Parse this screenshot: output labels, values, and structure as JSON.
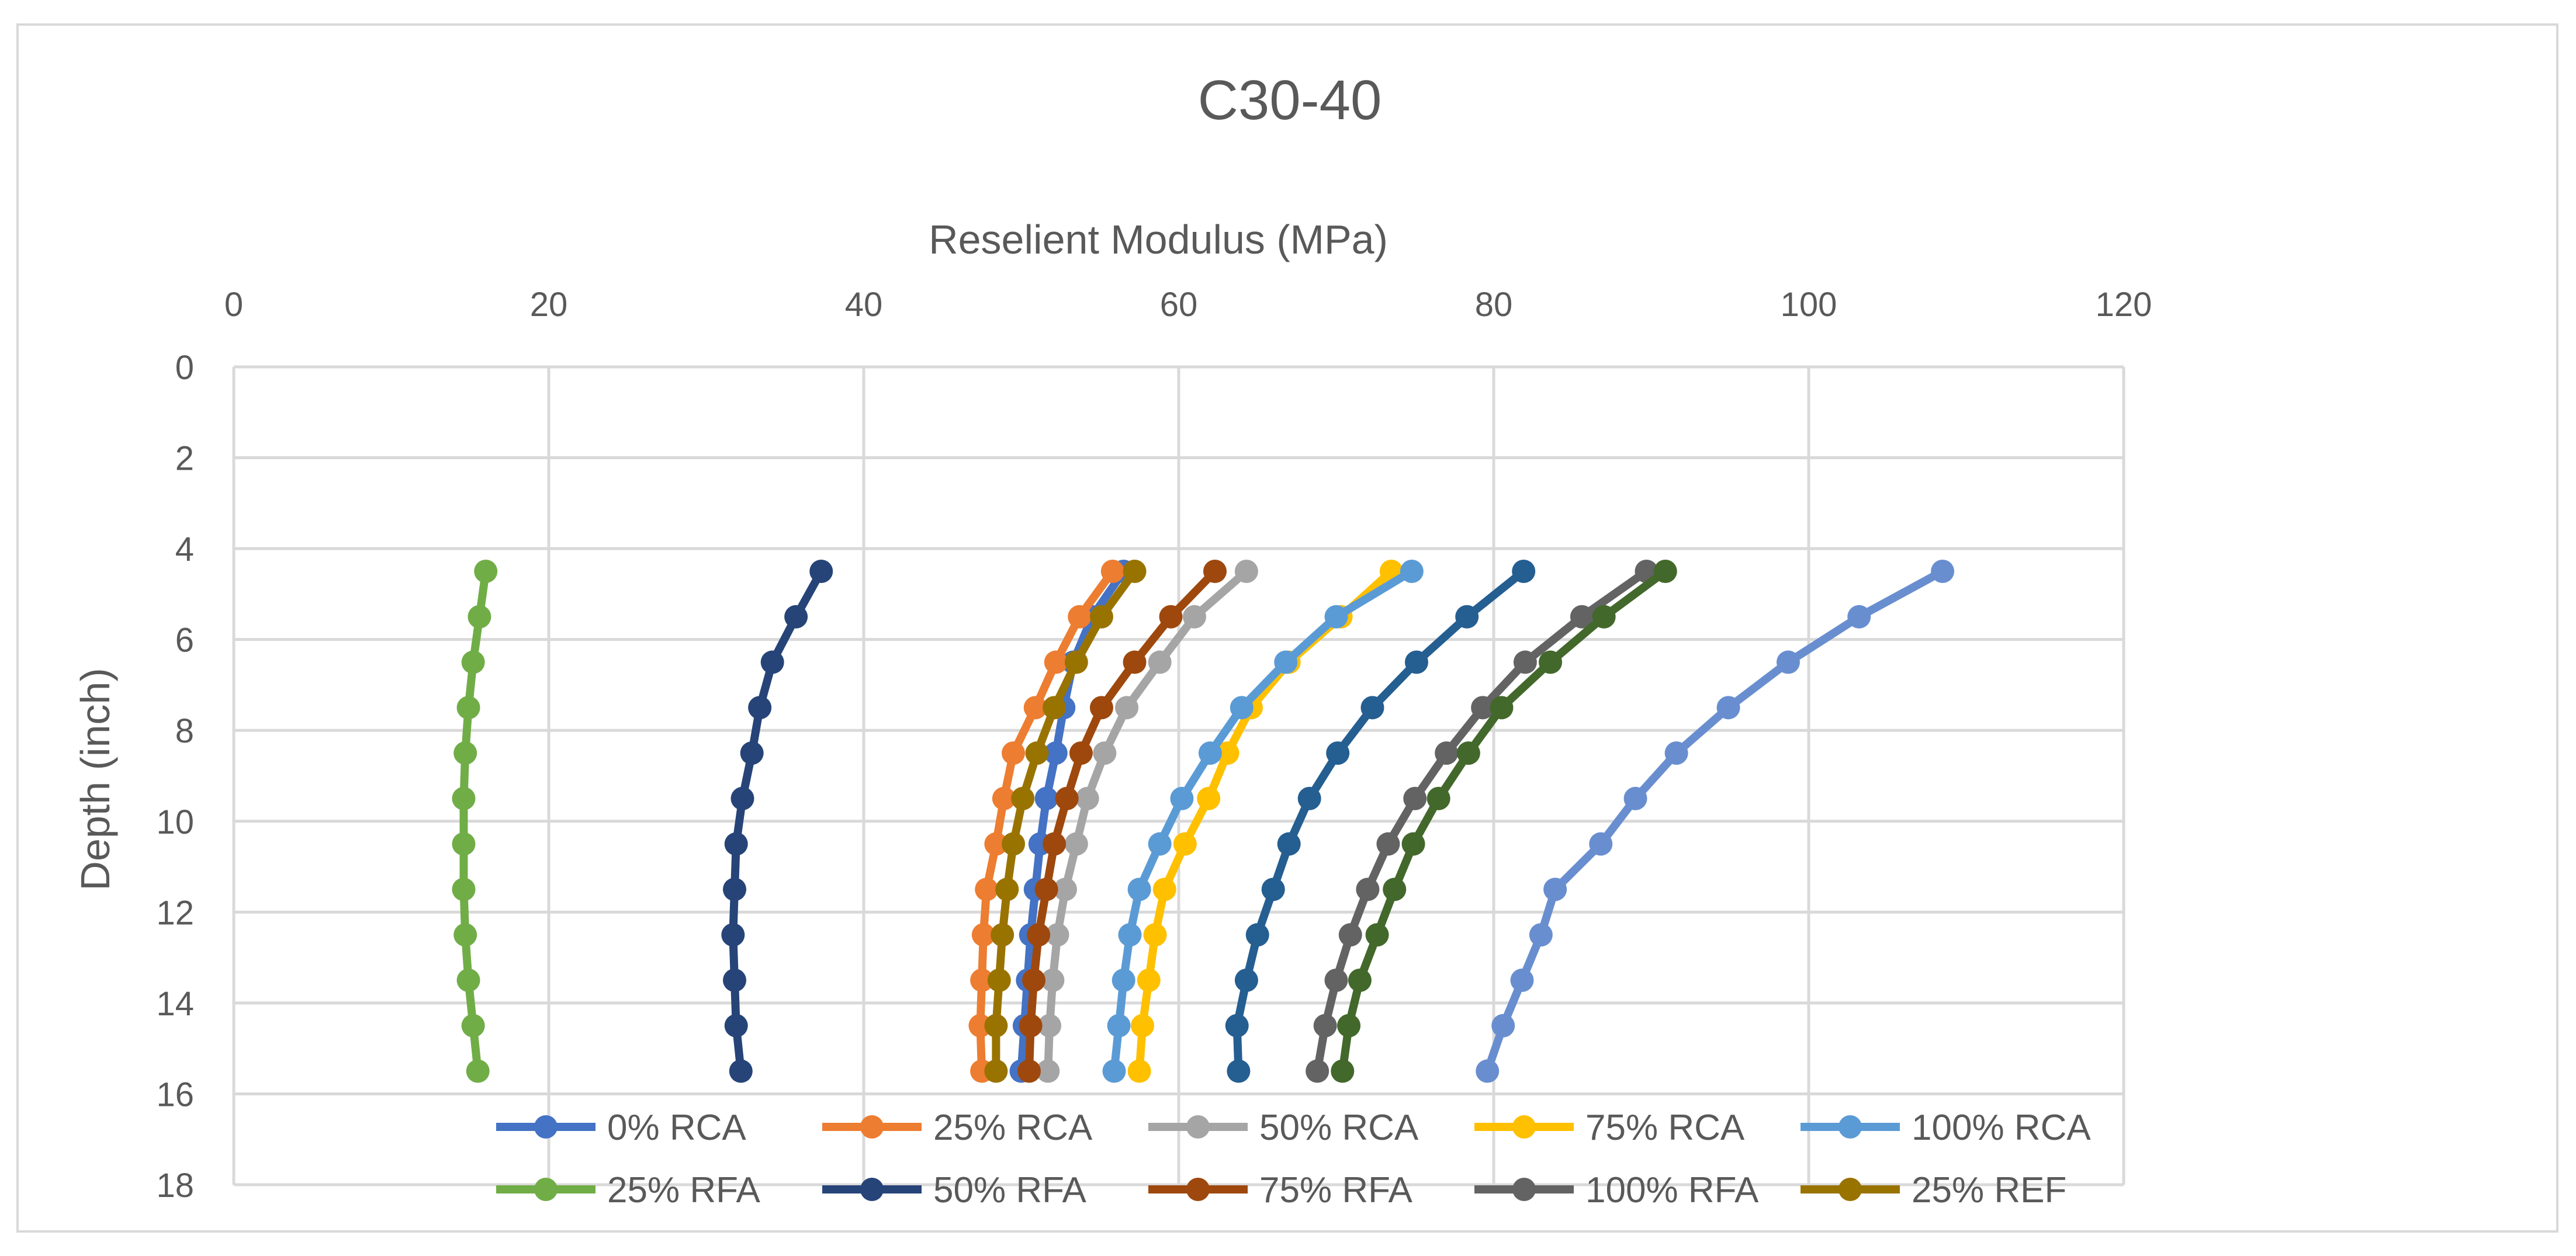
{
  "chart_data": {
    "type": "line",
    "title": "C30-40",
    "xlabel": "Reselient Modulus (MPa)",
    "ylabel": "Depth (inch)",
    "x_axis_position": "top",
    "y_axis_reversed": true,
    "xlim": [
      0,
      120
    ],
    "ylim": [
      0,
      18
    ],
    "xticks": [
      "0",
      "20",
      "40",
      "60",
      "80",
      "100",
      "120"
    ],
    "yticks": [
      "0",
      "2",
      "4",
      "6",
      "8",
      "10",
      "12",
      "14",
      "16",
      "18"
    ],
    "grid": true,
    "legend_position": "bottom",
    "depths": [
      4.5,
      5.5,
      6.5,
      7.5,
      8.5,
      9.5,
      10.5,
      11.5,
      12.5,
      13.5,
      14.5,
      15.5
    ],
    "series": [
      {
        "name": "0% RCA",
        "color": "#4472C4",
        "values": [
          56.5,
          54.5,
          53.3,
          52.7,
          52.2,
          51.6,
          51.2,
          50.9,
          50.6,
          50.4,
          50.2,
          50.0
        ]
      },
      {
        "name": "25% RCA",
        "color": "#ED7D31",
        "values": [
          55.8,
          53.7,
          52.2,
          50.9,
          49.5,
          48.9,
          48.4,
          47.8,
          47.6,
          47.5,
          47.4,
          47.5
        ]
      },
      {
        "name": "50% RCA",
        "color": "#A5A5A5",
        "values": [
          64.3,
          61.0,
          58.8,
          56.7,
          55.3,
          54.2,
          53.5,
          52.8,
          52.3,
          52.0,
          51.8,
          51.7
        ]
      },
      {
        "name": "75% RCA",
        "color": "#FFC000",
        "values": [
          73.5,
          70.3,
          67.0,
          64.6,
          63.1,
          61.9,
          60.4,
          59.1,
          58.5,
          58.1,
          57.7,
          57.5
        ]
      },
      {
        "name": "100% RCA",
        "color": "#5B9BD5",
        "values": [
          74.8,
          70.0,
          66.8,
          64.0,
          62.0,
          60.2,
          58.8,
          57.5,
          56.9,
          56.5,
          56.2,
          55.9
        ]
      },
      {
        "name": "25% RFA",
        "color": "#70AD47",
        "values": [
          16.0,
          15.6,
          15.2,
          14.9,
          14.7,
          14.6,
          14.6,
          14.6,
          14.7,
          14.9,
          15.2,
          15.5
        ]
      },
      {
        "name": "50% RFA",
        "color": "#264478",
        "values": [
          37.3,
          35.7,
          34.2,
          33.4,
          32.9,
          32.3,
          31.9,
          31.8,
          31.7,
          31.8,
          31.9,
          32.2
        ]
      },
      {
        "name": "75% RFA",
        "color": "#9E480E",
        "values": [
          62.3,
          59.5,
          57.2,
          55.1,
          53.8,
          52.9,
          52.1,
          51.6,
          51.1,
          50.8,
          50.6,
          50.5
        ]
      },
      {
        "name": "100% RFA",
        "color": "#636363",
        "values": [
          89.7,
          85.6,
          82.0,
          79.3,
          77.0,
          75.0,
          73.3,
          72.0,
          70.9,
          70.0,
          69.3,
          68.8
        ]
      },
      {
        "name": "25% REF",
        "color": "#997300",
        "values": [
          57.2,
          55.1,
          53.5,
          52.1,
          51.0,
          50.1,
          49.5,
          49.1,
          48.8,
          48.6,
          48.4,
          48.4
        ]
      },
      {
        "name": "",
        "color": "#43682B",
        "values": [
          90.9,
          87.0,
          83.6,
          80.5,
          78.4,
          76.5,
          74.9,
          73.7,
          72.6,
          71.5,
          70.8,
          70.4
        ]
      },
      {
        "name": "",
        "color": "#255E91",
        "values": [
          81.9,
          78.3,
          75.1,
          72.3,
          70.1,
          68.3,
          67.0,
          66.0,
          65.0,
          64.3,
          63.7,
          63.8
        ]
      },
      {
        "name": "",
        "color": "#698ED0",
        "values": [
          108.5,
          103.2,
          98.7,
          94.9,
          91.6,
          89.0,
          86.8,
          83.9,
          83.0,
          81.8,
          80.6,
          79.6
        ]
      }
    ]
  }
}
